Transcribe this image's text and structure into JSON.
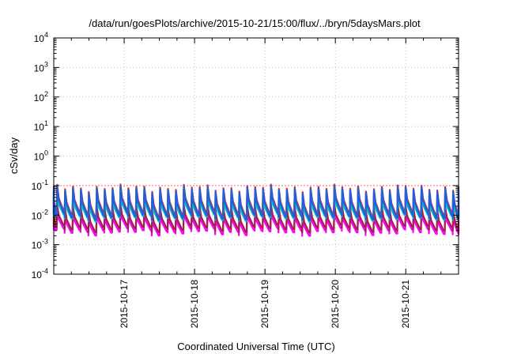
{
  "chart_data": {
    "type": "line",
    "title": "/data/run/goesPlots/archive/2015-10-21/15:00/flux/../bryn/5daysMars.plot",
    "xlabel": "Coordinated Universal Time (UTC)",
    "ylabel": "cSv/day",
    "yscale": "log",
    "ylim": [
      0.0001,
      10000
    ],
    "yticks": [
      {
        "base": "10",
        "exp": "4"
      },
      {
        "base": "10",
        "exp": "3"
      },
      {
        "base": "10",
        "exp": "2"
      },
      {
        "base": "10",
        "exp": "1"
      },
      {
        "base": "10",
        "exp": "0"
      },
      {
        "base": "10",
        "exp": "-1"
      },
      {
        "base": "10",
        "exp": "-2"
      },
      {
        "base": "10",
        "exp": "-3"
      },
      {
        "base": "10",
        "exp": "-4"
      }
    ],
    "xlim": [
      "2015-10-16 00:00",
      "2015-10-21 18:00"
    ],
    "xticks": [
      "2015-10-17",
      "2015-10-18",
      "2015-10-19",
      "2015-10-20",
      "2015-10-21"
    ],
    "grid": true,
    "reference_line": {
      "y": 0.1,
      "color": "#ff6666"
    },
    "pattern": {
      "period_hours": 2.7,
      "first_peak_hours": 1.0,
      "peak_hours": 0.15,
      "decay_hours": 2.2
    },
    "series": [
      {
        "color": "#ff00ff",
        "peak": 0.012,
        "trough": 0.0028
      },
      {
        "color": "#a0204a",
        "peak": 0.018,
        "trough": 0.0036
      },
      {
        "color": "#00c0c0",
        "peak": 0.04,
        "trough": 0.0085
      },
      {
        "color": "#4a7a30",
        "peak": 0.055,
        "trough": 0.012
      },
      {
        "color": "#d03030",
        "peak": 0.085,
        "trough": 0.011
      },
      {
        "color": "#2060e0",
        "peak": 0.075,
        "trough": 0.0095
      }
    ]
  }
}
